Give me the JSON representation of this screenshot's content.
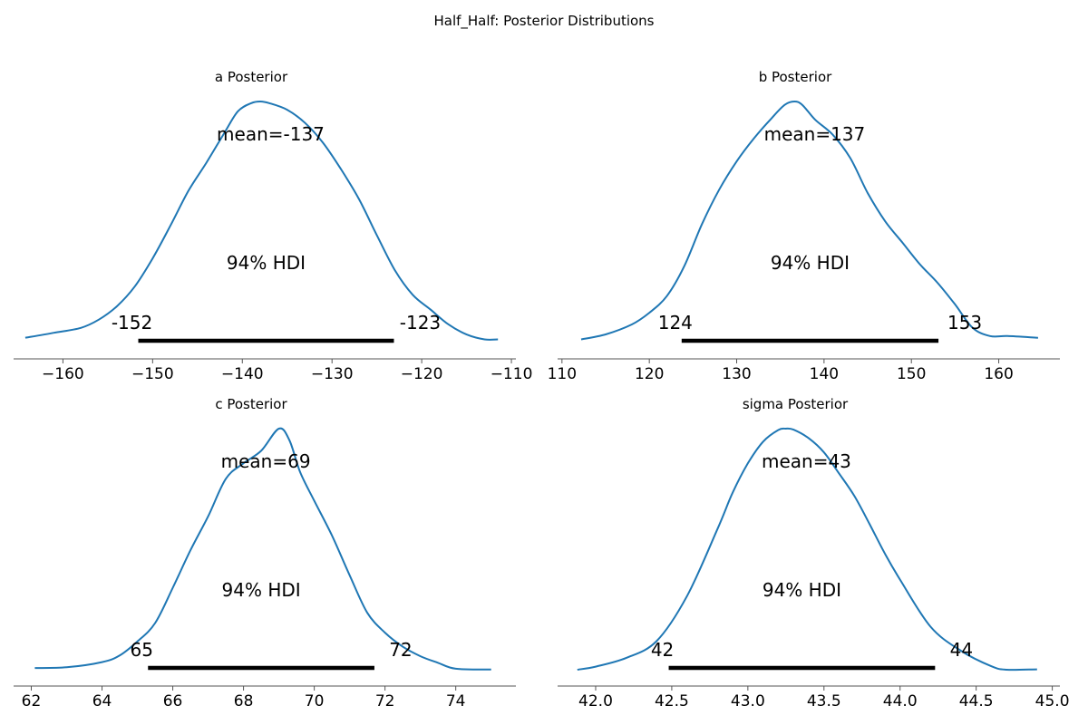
{
  "figure": {
    "suptitle": "Half_Half: Posterior Distributions"
  },
  "colors": {
    "density": "#1f77b4",
    "hdi_bar": "#000000",
    "axis": "#555555",
    "text": "#000000"
  },
  "chart_data": [
    {
      "type": "area",
      "title": "a Posterior",
      "xlim": [
        -165.5,
        -109.5
      ],
      "xticks": [
        -160,
        -150,
        -140,
        -130,
        -120,
        -110
      ],
      "xticklabels": [
        "−160",
        "−150",
        "−140",
        "−130",
        "−120",
        "−110"
      ],
      "mean_label": "mean=-137",
      "hdi_label": "94% HDI",
      "hdi": [
        -151.6,
        -123.1
      ],
      "hdi_low_label": "-152",
      "hdi_high_label": "-123",
      "density": {
        "x": [
          -164.2,
          -161.0,
          -158.0,
          -156.0,
          -154.0,
          -152.0,
          -150.0,
          -148.0,
          -146.0,
          -144.0,
          -142.0,
          -140.5,
          -139.0,
          -138.0,
          -137.0,
          -135.0,
          -133.0,
          -131.0,
          -129.0,
          -127.0,
          -125.0,
          -123.0,
          -121.0,
          -119.0,
          -117.0,
          -115.0,
          -113.0,
          -111.5
        ],
        "y": [
          0.004,
          0.007,
          0.01,
          0.015,
          0.023,
          0.035,
          0.052,
          0.072,
          0.093,
          0.11,
          0.128,
          0.141,
          0.146,
          0.147,
          0.146,
          0.142,
          0.134,
          0.122,
          0.106,
          0.088,
          0.066,
          0.045,
          0.03,
          0.021,
          0.012,
          0.006,
          0.003,
          0.003
        ]
      }
    },
    {
      "type": "area",
      "title": "b Posterior",
      "xlim": [
        109.5,
        167.0
      ],
      "xticks": [
        110,
        120,
        130,
        140,
        150,
        160
      ],
      "xticklabels": [
        "110",
        "120",
        "130",
        "140",
        "150",
        "160"
      ],
      "mean_label": "mean=137",
      "hdi_label": "94% HDI",
      "hdi": [
        123.7,
        153.1
      ],
      "hdi_low_label": "124",
      "hdi_high_label": "153",
      "density": {
        "x": [
          112.2,
          115.0,
          118.0,
          120.0,
          122.0,
          124.0,
          126.0,
          128.0,
          130.0,
          132.0,
          134.0,
          135.5,
          136.6,
          137.5,
          139.0,
          141.0,
          143.0,
          145.0,
          147.0,
          149.0,
          151.0,
          153.0,
          155.0,
          157.0,
          159.0,
          161.0,
          164.5
        ],
        "y": [
          0.003,
          0.006,
          0.012,
          0.019,
          0.029,
          0.047,
          0.072,
          0.093,
          0.11,
          0.124,
          0.136,
          0.144,
          0.146,
          0.144,
          0.135,
          0.126,
          0.112,
          0.091,
          0.074,
          0.061,
          0.048,
          0.037,
          0.024,
          0.01,
          0.005,
          0.005,
          0.004
        ]
      }
    },
    {
      "type": "area",
      "title": "c Posterior",
      "xlim": [
        61.5,
        75.7
      ],
      "xticks": [
        62,
        64,
        66,
        68,
        70,
        72,
        74
      ],
      "xticklabels": [
        "62",
        "64",
        "66",
        "68",
        "70",
        "72",
        "74"
      ],
      "mean_label": "mean=69",
      "hdi_label": "94% HDI",
      "hdi": [
        65.3,
        71.7
      ],
      "hdi_low_label": "65",
      "hdi_high_label": "72",
      "density": {
        "x": [
          62.1,
          63.0,
          64.0,
          64.5,
          65.0,
          65.5,
          66.0,
          66.5,
          67.0,
          67.5,
          68.0,
          68.5,
          69.0,
          69.3,
          69.6,
          70.0,
          70.5,
          71.0,
          71.5,
          72.0,
          72.5,
          73.0,
          73.5,
          74.0,
          75.0
        ],
        "y": [
          0.006,
          0.007,
          0.014,
          0.023,
          0.042,
          0.067,
          0.115,
          0.166,
          0.212,
          0.263,
          0.284,
          0.301,
          0.331,
          0.315,
          0.272,
          0.233,
          0.186,
          0.132,
          0.081,
          0.054,
          0.035,
          0.022,
          0.013,
          0.005,
          0.004
        ]
      }
    },
    {
      "type": "area",
      "title": "sigma Posterior",
      "xlim": [
        41.75,
        45.05
      ],
      "xticks": [
        42.0,
        42.5,
        43.0,
        43.5,
        44.0,
        44.5,
        45.0
      ],
      "xticklabels": [
        "42.0",
        "42.5",
        "43.0",
        "43.5",
        "44.0",
        "44.5",
        "45.0"
      ],
      "mean_label": "mean=43",
      "hdi_label": "94% HDI",
      "hdi": [
        42.48,
        44.23
      ],
      "hdi_low_label": "42",
      "hdi_high_label": "44",
      "density": {
        "x": [
          41.88,
          42.0,
          42.2,
          42.4,
          42.6,
          42.8,
          42.9,
          43.0,
          43.1,
          43.2,
          43.25,
          43.3,
          43.4,
          43.5,
          43.6,
          43.7,
          43.8,
          43.9,
          44.0,
          44.2,
          44.4,
          44.6,
          44.7,
          44.9
        ],
        "y": [
          0.008,
          0.017,
          0.042,
          0.091,
          0.222,
          0.417,
          0.523,
          0.608,
          0.671,
          0.705,
          0.709,
          0.706,
          0.681,
          0.64,
          0.578,
          0.513,
          0.431,
          0.346,
          0.27,
          0.133,
          0.063,
          0.018,
          0.008,
          0.009
        ]
      }
    }
  ]
}
